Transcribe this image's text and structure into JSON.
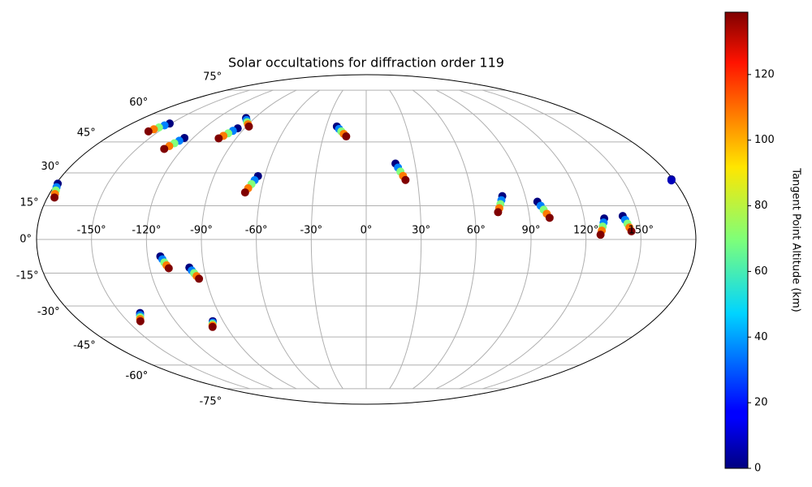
{
  "chart_data": {
    "type": "scatter",
    "projection": "mollweide",
    "title": "Solar occultations for diffraction order 119",
    "colorbar_label": "Tangent Point Altitude (km)",
    "colormap": "jet",
    "clim": [
      0,
      139
    ],
    "cticks": [
      0,
      20,
      40,
      60,
      80,
      100,
      120
    ],
    "grid": true,
    "xticks": [
      {
        "value": -150,
        "label": "-150°"
      },
      {
        "value": -120,
        "label": "-120°"
      },
      {
        "value": -90,
        "label": "-90°"
      },
      {
        "value": -60,
        "label": "-60°"
      },
      {
        "value": -30,
        "label": "-30°"
      },
      {
        "value": 0,
        "label": "0°"
      },
      {
        "value": 30,
        "label": "30°"
      },
      {
        "value": 60,
        "label": "60°"
      },
      {
        "value": 90,
        "label": "90°"
      },
      {
        "value": 120,
        "label": "120°"
      },
      {
        "value": 150,
        "label": "150°"
      }
    ],
    "yticks": [
      {
        "value": -75,
        "label": "-75°"
      },
      {
        "value": -60,
        "label": "-60°"
      },
      {
        "value": -45,
        "label": "-45°"
      },
      {
        "value": -30,
        "label": "-30°"
      },
      {
        "value": -15,
        "label": "-15°"
      },
      {
        "value": 0,
        "label": "0°"
      },
      {
        "value": 15,
        "label": "15°"
      },
      {
        "value": 30,
        "label": "30°"
      },
      {
        "value": 45,
        "label": "45°"
      },
      {
        "value": 60,
        "label": "60°"
      },
      {
        "value": 75,
        "label": "75°"
      }
    ],
    "tracks": [
      {
        "lon": [
          -151,
          -152.6,
          -154.3,
          -155.9,
          -157.5
        ],
        "lat": [
          54.6,
          53.6,
          52.5,
          51.5,
          50.4
        ],
        "alt": [
          0,
          35,
          70,
          105,
          139
        ]
      },
      {
        "lon": [
          -126,
          -127.5,
          -129,
          -130.5,
          -132
        ],
        "lat": [
          47,
          45.6,
          44.3,
          42.9,
          41.5
        ],
        "alt": [
          0,
          35,
          70,
          105,
          139
        ]
      },
      {
        "lon": [
          -95,
          -96.8,
          -98.5,
          -100.3,
          -102
        ],
        "lat": [
          52,
          50.7,
          49.4,
          48.1,
          46.8
        ],
        "alt": [
          0,
          35,
          70,
          105,
          139
        ]
      },
      {
        "lon": [
          -97,
          -94.8,
          -92.5,
          -90.3,
          -88
        ],
        "lat": [
          57.6,
          56.5,
          55.3,
          54.2,
          53
        ],
        "alt": [
          0,
          35,
          70,
          105,
          139
        ]
      },
      {
        "lon": [
          -64,
          -65.3,
          -66.5,
          -67.8,
          -69
        ],
        "lat": [
          28.5,
          26.6,
          24.8,
          22.9,
          21
        ],
        "alt": [
          0,
          35,
          70,
          105,
          139
        ]
      },
      {
        "lon": [
          -22,
          -20,
          -18,
          -16,
          -14
        ],
        "lat": [
          53,
          51.7,
          50.4,
          49.1,
          47.8
        ],
        "alt": [
          0,
          35,
          70,
          105,
          139
        ]
      },
      {
        "lon": [
          18,
          19.3,
          20.5,
          21.8,
          23
        ],
        "lat": [
          34.4,
          32.5,
          30.6,
          28.6,
          26.7
        ],
        "alt": [
          0,
          35,
          70,
          105,
          139
        ]
      },
      {
        "lon": [
          77,
          76,
          75,
          74,
          73
        ],
        "lat": [
          19.3,
          17.5,
          15.7,
          13.9,
          12.1
        ],
        "alt": [
          0,
          35,
          70,
          105,
          139
        ]
      },
      {
        "lon": [
          96,
          97.3,
          98.5,
          99.8,
          101
        ],
        "lat": [
          16.8,
          15,
          13.2,
          11.4,
          9.6
        ],
        "alt": [
          0,
          35,
          70,
          105,
          139
        ]
      },
      {
        "lon": [
          131,
          130.3,
          129.5,
          128.8,
          128
        ],
        "lat": [
          9.3,
          7.5,
          5.7,
          3.9,
          2.1
        ],
        "alt": [
          0,
          35,
          70,
          105,
          139
        ]
      },
      {
        "lon": [
          141.5,
          142.4,
          143.3,
          144.1,
          145
        ],
        "lat": [
          10.4,
          8.7,
          7,
          5.3,
          3.6
        ],
        "alt": [
          0,
          35,
          70,
          105,
          139
        ]
      },
      {
        "lon": [
          179,
          178.5
        ],
        "lat": [
          27,
          26.5
        ],
        "alt": [
          0,
          8
        ]
      },
      {
        "lon": [
          -179,
          -178.3,
          -177.5,
          -176.8,
          -176
        ],
        "lat": [
          25,
          23.4,
          21.9,
          20.3,
          18.7
        ],
        "alt": [
          0,
          35,
          70,
          105,
          139
        ]
      },
      {
        "lon": [
          -113,
          -112.1,
          -111.3,
          -110.4,
          -109.5
        ],
        "lat": [
          -7.5,
          -8.8,
          -10.2,
          -11.5,
          -12.8
        ],
        "alt": [
          0,
          35,
          70,
          105,
          139
        ]
      },
      {
        "lon": [
          -98,
          -97,
          -96,
          -95,
          -94
        ],
        "lat": [
          -12.5,
          -13.8,
          -15,
          -16.3,
          -17.5
        ],
        "alt": [
          0,
          35,
          70,
          105,
          139
        ]
      },
      {
        "lon": [
          -138,
          -139,
          -140,
          -141,
          -142
        ],
        "lat": [
          -33.3,
          -34.3,
          -35.3,
          -36.2,
          -37.2
        ],
        "alt": [
          0,
          35,
          70,
          105,
          139
        ]
      },
      {
        "lon": [
          -96.5,
          -97.1,
          -97.8,
          -98.4,
          -99
        ],
        "lat": [
          -37.2,
          -37.9,
          -38.6,
          -39.3,
          -40
        ],
        "alt": [
          0,
          35,
          70,
          105,
          139
        ]
      }
    ]
  }
}
